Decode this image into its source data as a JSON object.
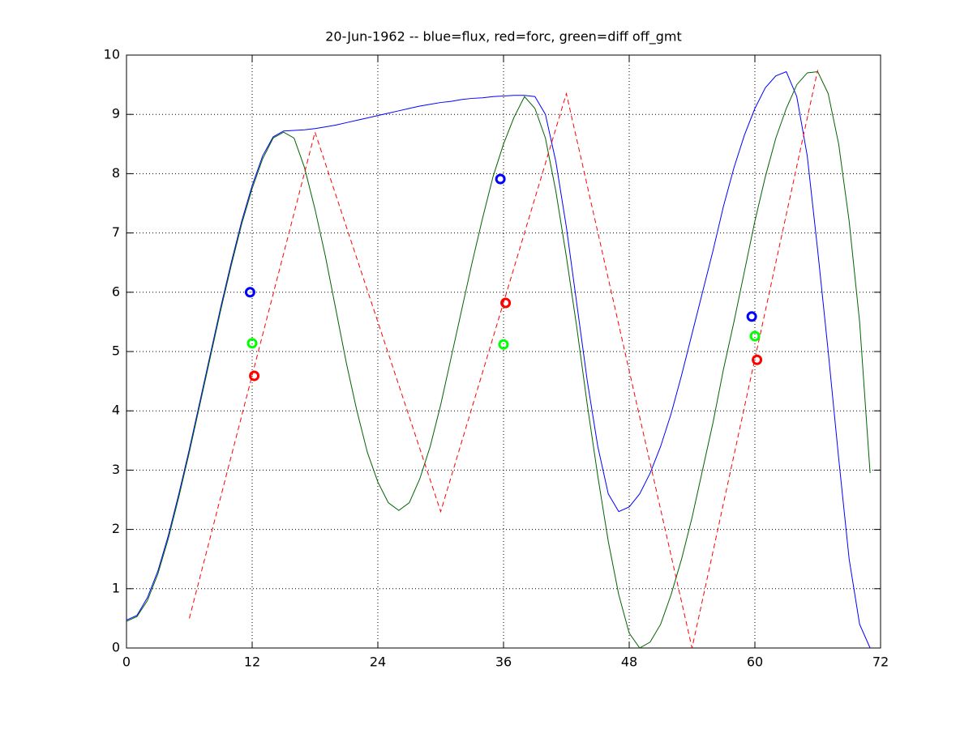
{
  "chart_data": {
    "type": "line",
    "title": "20-Jun-1962 -- blue=flux, red=forc, green=diff off_gmt",
    "xlim": [
      0,
      72
    ],
    "xticks": [
      0,
      12,
      24,
      36,
      48,
      60,
      72
    ],
    "ylim": [
      0,
      10
    ],
    "yticks": [
      0,
      1,
      2,
      3,
      4,
      5,
      6,
      7,
      8,
      9,
      10
    ],
    "grid": true,
    "series": [
      {
        "color": "#0000ff",
        "line_style": "-",
        "marker": "none",
        "x": [
          0,
          1,
          2,
          3,
          4,
          5,
          6,
          7,
          8,
          9,
          10,
          11,
          12,
          13,
          14,
          15,
          16,
          17,
          18,
          19,
          20,
          21,
          22,
          23,
          24,
          25,
          26,
          27,
          28,
          29,
          30,
          31,
          32,
          33,
          34,
          35,
          36,
          37,
          38,
          39,
          40,
          41,
          42,
          43,
          44,
          45,
          46,
          47,
          48,
          49,
          50,
          51,
          52,
          53,
          54,
          55,
          56,
          57,
          58,
          59,
          60,
          61,
          62,
          63,
          64,
          65,
          66,
          67,
          68,
          69,
          70,
          71
        ],
        "values": [
          0.47,
          0.55,
          0.85,
          1.3,
          1.9,
          2.6,
          3.35,
          4.15,
          4.95,
          5.75,
          6.5,
          7.2,
          7.8,
          8.3,
          8.62,
          8.72,
          8.73,
          8.74,
          8.76,
          8.79,
          8.82,
          8.86,
          8.9,
          8.94,
          8.98,
          9.02,
          9.06,
          9.1,
          9.14,
          9.17,
          9.2,
          9.22,
          9.25,
          9.27,
          9.28,
          9.3,
          9.31,
          9.32,
          9.32,
          9.3,
          9.0,
          8.2,
          7.1,
          5.8,
          4.5,
          3.4,
          2.6,
          2.3,
          2.38,
          2.6,
          2.95,
          3.4,
          3.95,
          4.6,
          5.3,
          6.0,
          6.7,
          7.45,
          8.1,
          8.65,
          9.1,
          9.45,
          9.65,
          9.72,
          9.3,
          8.3,
          6.7,
          5.0,
          3.2,
          1.5,
          0.4,
          0.0
        ]
      },
      {
        "color": "#006400",
        "line_style": "-",
        "marker": "none",
        "x": [
          0,
          1,
          2,
          3,
          4,
          5,
          6,
          7,
          8,
          9,
          10,
          11,
          12,
          13,
          14,
          15,
          16,
          17,
          18,
          19,
          20,
          21,
          22,
          23,
          24,
          25,
          26,
          27,
          28,
          29,
          30,
          31,
          32,
          33,
          34,
          35,
          36,
          37,
          38,
          39,
          40,
          41,
          42,
          43,
          44,
          45,
          46,
          47,
          48,
          49,
          50,
          51,
          52,
          53,
          54,
          55,
          56,
          57,
          58,
          59,
          60,
          61,
          62,
          63,
          64,
          65,
          66,
          67,
          68,
          69,
          70,
          71
        ],
        "values": [
          0.45,
          0.53,
          0.8,
          1.25,
          1.85,
          2.55,
          3.3,
          4.1,
          4.9,
          5.7,
          6.45,
          7.15,
          7.75,
          8.25,
          8.6,
          8.7,
          8.6,
          8.1,
          7.4,
          6.6,
          5.7,
          4.8,
          4.0,
          3.3,
          2.8,
          2.45,
          2.32,
          2.45,
          2.85,
          3.4,
          4.1,
          4.9,
          5.7,
          6.5,
          7.25,
          7.95,
          8.5,
          8.95,
          9.3,
          9.1,
          8.6,
          7.7,
          6.6,
          5.4,
          4.1,
          2.9,
          1.8,
          0.9,
          0.25,
          0.0,
          0.1,
          0.4,
          0.9,
          1.5,
          2.2,
          3.0,
          3.8,
          4.7,
          5.5,
          6.35,
          7.2,
          7.95,
          8.6,
          9.1,
          9.5,
          9.7,
          9.72,
          9.35,
          8.5,
          7.2,
          5.5,
          2.95
        ]
      },
      {
        "color": "#ff0000",
        "line_style": "--",
        "marker": "none",
        "x": [
          6,
          18,
          30,
          42,
          54,
          66
        ],
        "values": [
          0.5,
          8.7,
          2.3,
          9.35,
          0.0,
          9.75
        ]
      },
      {
        "color": "#0000ff",
        "line_style": "none",
        "marker": "o",
        "x": [
          11.8,
          35.7,
          59.7
        ],
        "values": [
          6.0,
          7.91,
          5.59
        ]
      },
      {
        "color": "#00ff00",
        "line_style": "none",
        "marker": "o",
        "x": [
          12.0,
          36.0,
          60.0
        ],
        "values": [
          5.14,
          5.12,
          5.26
        ]
      },
      {
        "color": "#ff0000",
        "line_style": "none",
        "marker": "o",
        "x": [
          12.2,
          36.2,
          60.2
        ],
        "values": [
          4.59,
          5.82,
          4.86
        ]
      }
    ]
  }
}
